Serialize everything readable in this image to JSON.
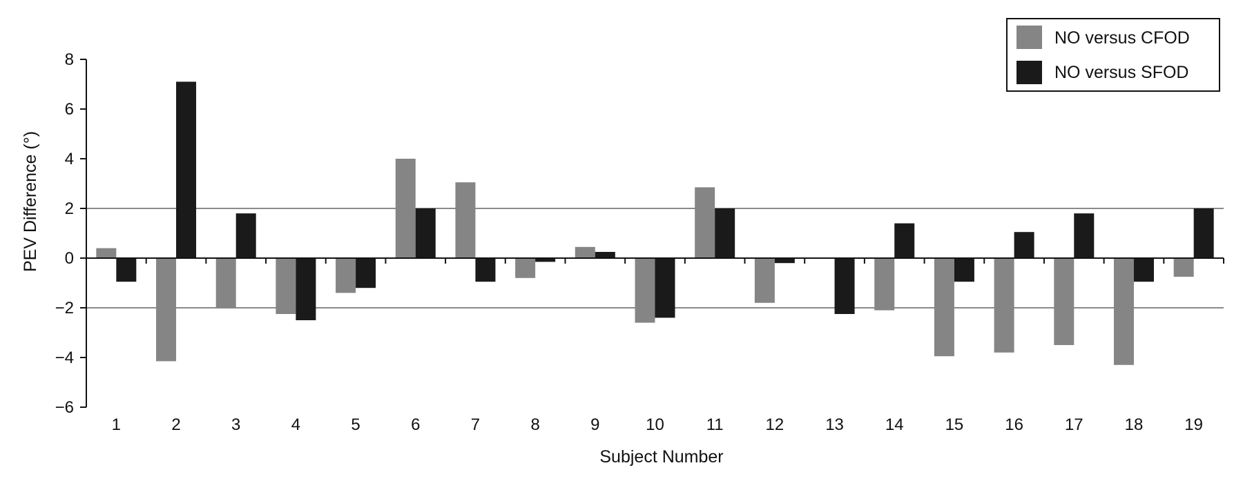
{
  "chart_data": {
    "type": "bar",
    "xlabel": "Subject Number",
    "ylabel": "PEV Difference (°)",
    "ylim": [
      -6,
      8
    ],
    "yticks": [
      "8",
      "6",
      "4",
      "2",
      "0",
      "−2",
      "−4",
      "−6"
    ],
    "ytick_values": [
      8,
      6,
      4,
      2,
      0,
      -2,
      -4,
      -6
    ],
    "categories": [
      "1",
      "2",
      "3",
      "4",
      "5",
      "6",
      "7",
      "8",
      "9",
      "10",
      "11",
      "12",
      "13",
      "14",
      "15",
      "16",
      "17",
      "18",
      "19"
    ],
    "reference_lines": [
      2,
      -2
    ],
    "legend_position": "top-right",
    "series": [
      {
        "name": "NO versus CFOD",
        "color": "#858585",
        "values": [
          0.4,
          -4.15,
          -2.0,
          -2.25,
          -1.4,
          4.0,
          3.05,
          -0.8,
          0.45,
          -2.6,
          2.85,
          -1.8,
          0.0,
          -2.1,
          -3.95,
          -3.8,
          -3.5,
          -4.3,
          -0.75
        ]
      },
      {
        "name": "NO versus SFOD",
        "color": "#1a1a1a",
        "values": [
          -0.95,
          7.1,
          1.8,
          -2.5,
          -1.2,
          2.0,
          -0.95,
          -0.15,
          0.25,
          -2.4,
          2.0,
          -0.2,
          -2.25,
          1.4,
          -0.95,
          1.05,
          1.8,
          -0.95,
          2.0
        ]
      }
    ]
  }
}
